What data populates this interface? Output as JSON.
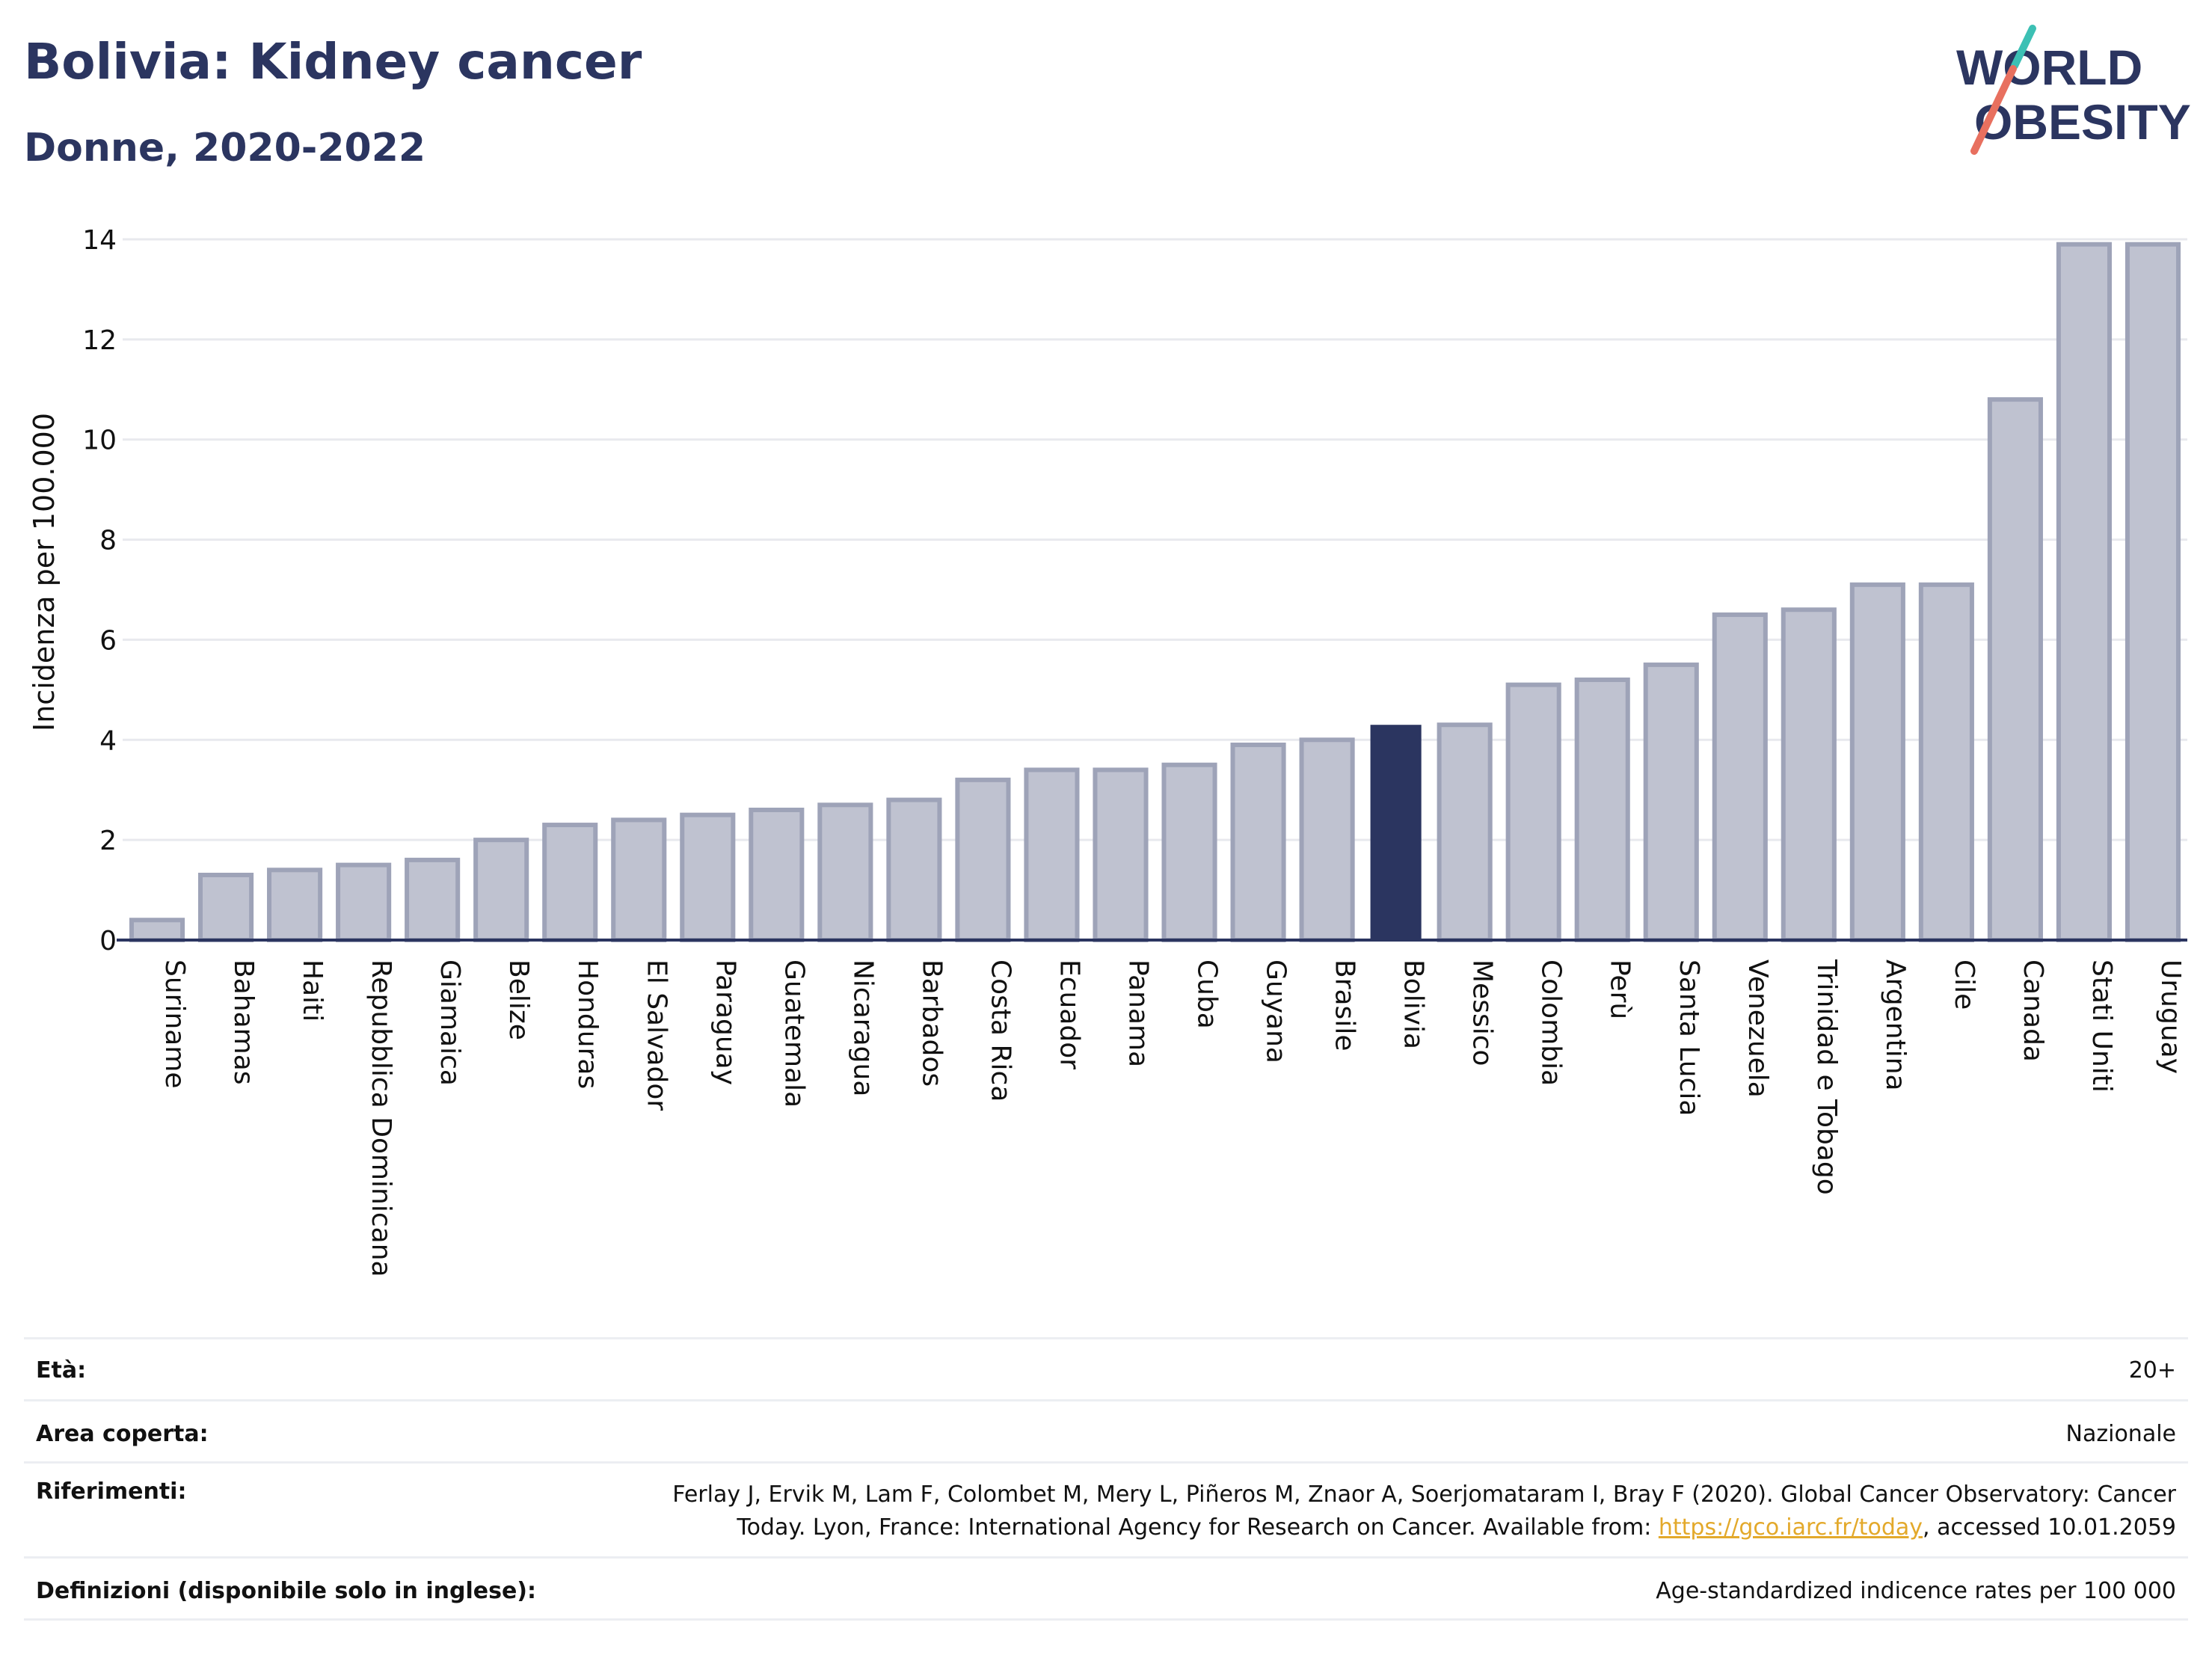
{
  "title": "Bolivia: Kidney cancer",
  "subtitle": "Donne, 2020-2022",
  "logo": {
    "line1": "WORLD",
    "line2": "OBESITY"
  },
  "chart_data": {
    "type": "bar",
    "ylabel": "Incidenza per 100.000",
    "ylim": [
      0,
      14
    ],
    "yticks": [
      "0",
      "2",
      "4",
      "6",
      "8",
      "10",
      "12",
      "14"
    ],
    "grid": true,
    "highlight": "Bolivia",
    "colors": {
      "bar": "#bfc2d0",
      "bar_edge": "#9ea3b8",
      "highlight": "#2b3560",
      "grid": "#e8e9ee",
      "axis": "#2b3560"
    },
    "categories": [
      "Suriname",
      "Bahamas",
      "Haiti",
      "Repubblica Dominicana",
      "Giamaica",
      "Belize",
      "Honduras",
      "El Salvador",
      "Paraguay",
      "Guatemala",
      "Nicaragua",
      "Barbados",
      "Costa Rica",
      "Ecuador",
      "Panama",
      "Cuba",
      "Guyana",
      "Brasile",
      "Bolivia",
      "Messico",
      "Colombia",
      "Perù",
      "Santa Lucia",
      "Venezuela",
      "Trinidad e Tobago",
      "Argentina",
      "Cile",
      "Canada",
      "Stati Uniti",
      "Uruguay"
    ],
    "values": [
      0.4,
      1.3,
      1.4,
      1.5,
      1.6,
      2.0,
      2.3,
      2.4,
      2.5,
      2.6,
      2.7,
      2.8,
      3.2,
      3.4,
      3.4,
      3.5,
      3.9,
      4.0,
      4.3,
      4.3,
      5.1,
      5.2,
      5.5,
      6.5,
      6.6,
      7.1,
      7.1,
      10.8,
      13.9,
      13.9
    ]
  },
  "info": {
    "age_label": "Età:",
    "age_value": "20+",
    "area_label": "Area coperta:",
    "area_value": "Nazionale",
    "ref_label": "Riferimenti:",
    "ref_line1": "Ferlay J, Ervik M, Lam F, Colombet M, Mery L, Piñeros M, Znaor A, Soerjomataram I, Bray F (2020). Global Cancer Observatory: Cancer",
    "ref_line2_pre": "Today. Lyon, France: International Agency for Research on Cancer. Available from: ",
    "ref_link": "https://gco.iarc.fr/today",
    "ref_line2_post": ", accessed 10.01.2059",
    "def_label": "Definizioni (disponibile solo in inglese):",
    "def_value": "Age-standardized indicence rates per 100 000"
  }
}
